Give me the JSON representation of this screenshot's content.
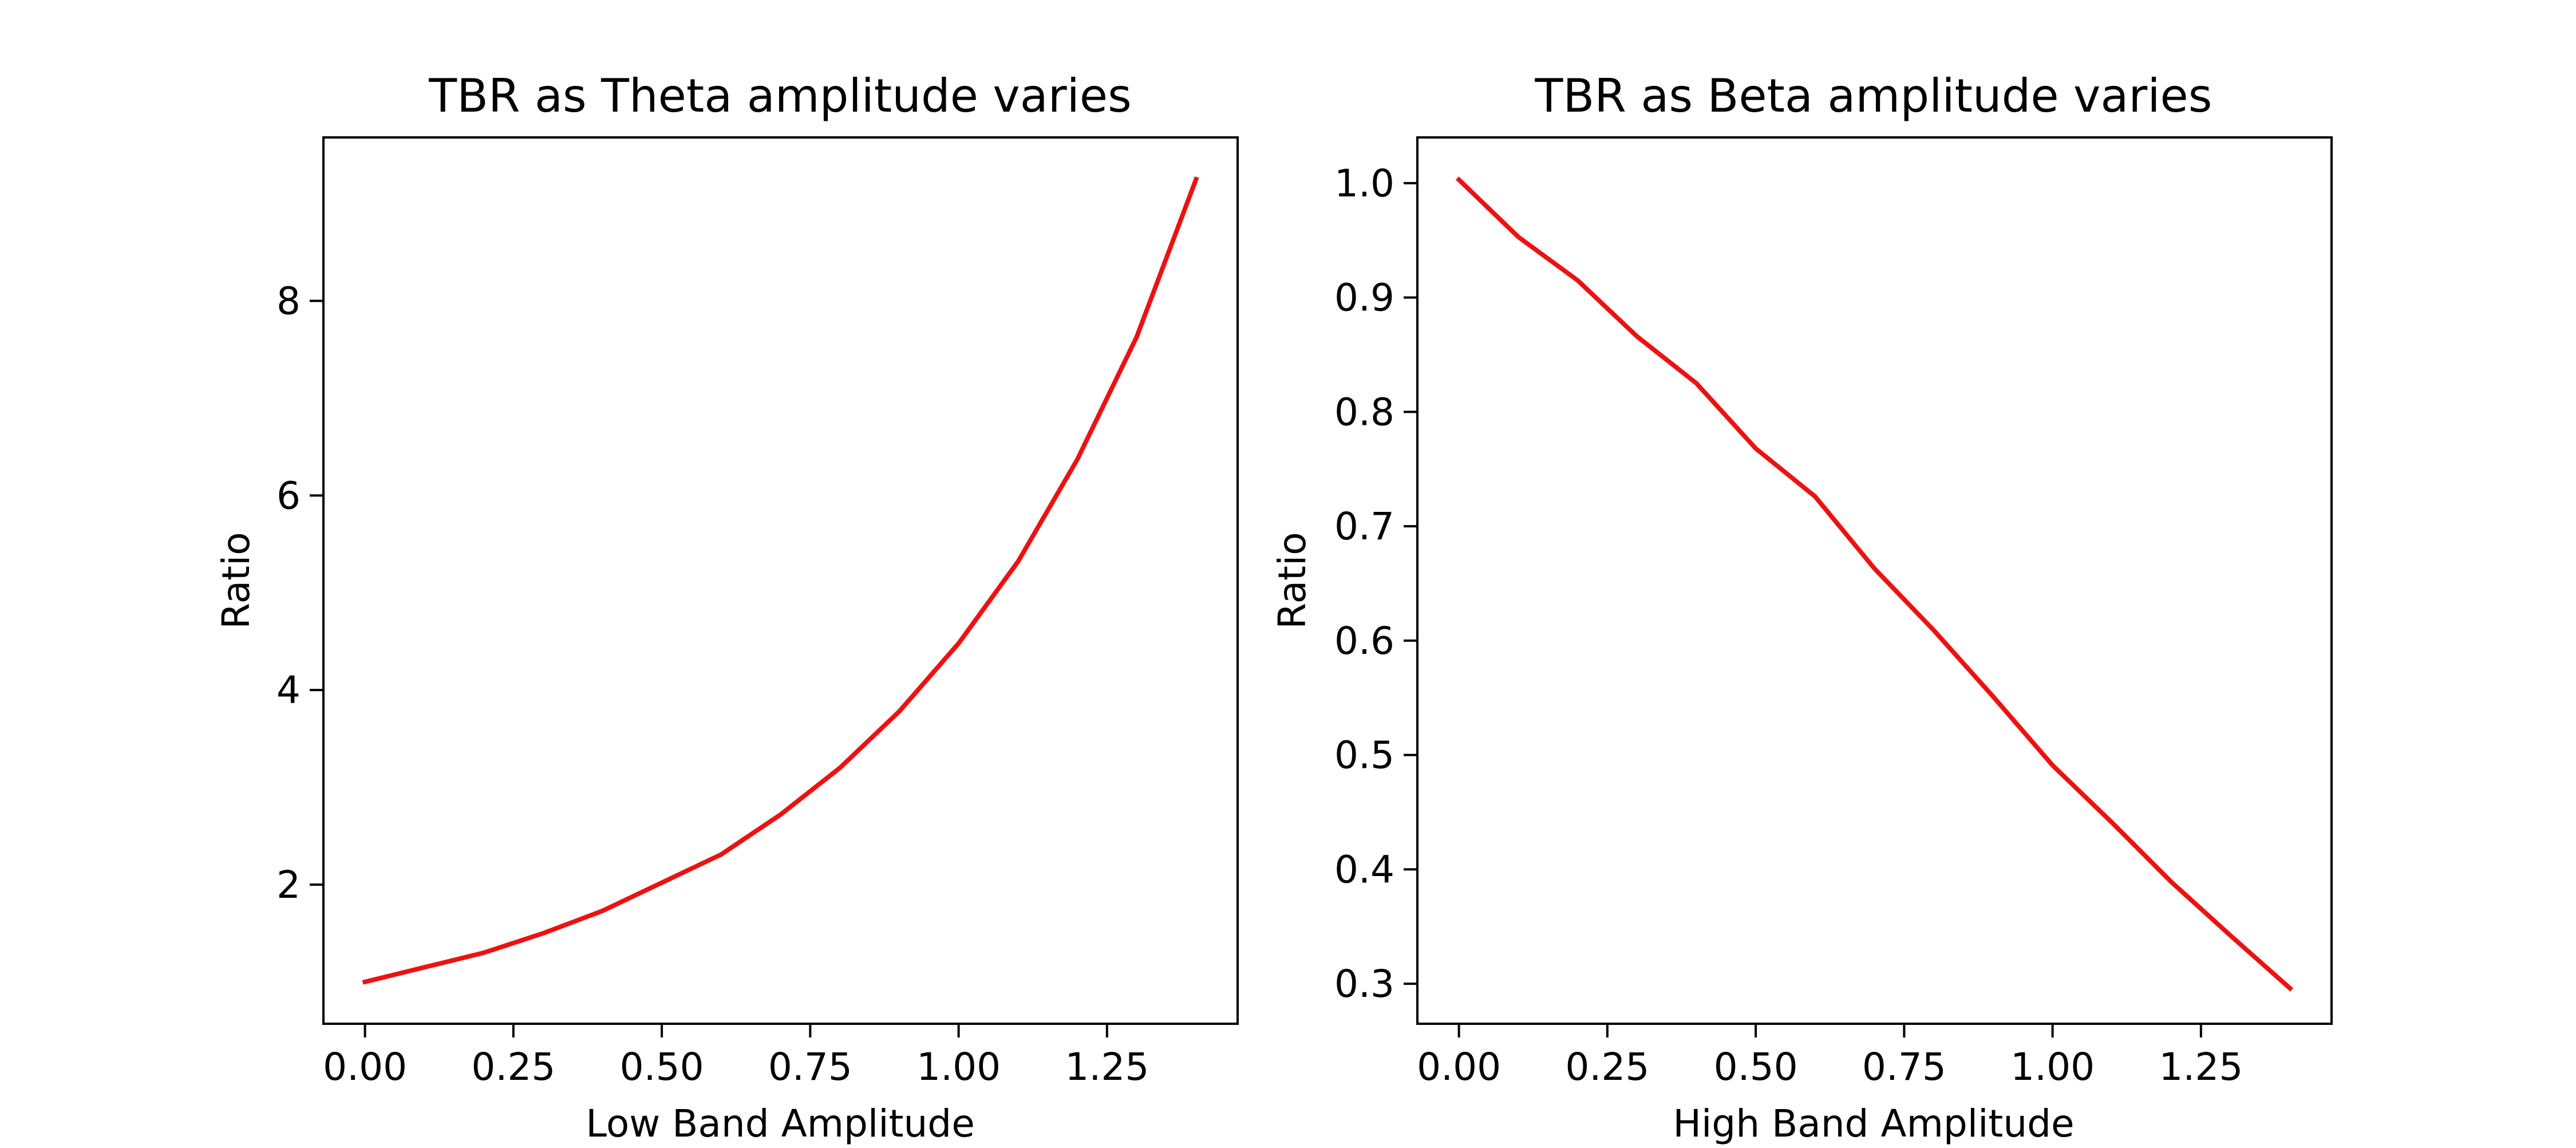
{
  "chart_data": [
    {
      "type": "line",
      "title": "TBR as Theta amplitude varies",
      "xlabel": "Low Band Amplitude",
      "ylabel": "Ratio",
      "xlim": [
        -0.07,
        1.47
      ],
      "ylim": [
        0.57,
        9.68
      ],
      "xticks": [
        0.0,
        0.25,
        0.5,
        0.75,
        1.0,
        1.25
      ],
      "xtick_labels": [
        "0.00",
        "0.25",
        "0.50",
        "0.75",
        "1.00",
        "1.25"
      ],
      "yticks": [
        2,
        4,
        6,
        8
      ],
      "ytick_labels": [
        "2",
        "4",
        "6",
        "8"
      ],
      "grid": false,
      "series": [
        {
          "color": "#ee1111",
          "x": [
            0.0,
            0.1,
            0.2,
            0.3,
            0.4,
            0.5,
            0.6,
            0.7,
            0.8,
            0.9,
            1.0,
            1.1,
            1.2,
            1.3,
            1.4
          ],
          "y": [
            1.0,
            1.15,
            1.3,
            1.5,
            1.73,
            2.02,
            2.31,
            2.72,
            3.2,
            3.78,
            4.48,
            5.32,
            6.37,
            7.63,
            9.25
          ]
        }
      ]
    },
    {
      "type": "line",
      "title": "TBR as Beta amplitude varies",
      "xlabel": "High Band Amplitude",
      "ylabel": "Ratio",
      "xlim": [
        -0.07,
        1.47
      ],
      "ylim": [
        0.265,
        1.04
      ],
      "xticks": [
        0.0,
        0.25,
        0.5,
        0.75,
        1.0,
        1.25
      ],
      "xtick_labels": [
        "0.00",
        "0.25",
        "0.50",
        "0.75",
        "1.00",
        "1.25"
      ],
      "yticks": [
        0.3,
        0.4,
        0.5,
        0.6,
        0.7,
        0.8,
        0.9,
        1.0
      ],
      "ytick_labels": [
        "0.3",
        "0.4",
        "0.5",
        "0.6",
        "0.7",
        "0.8",
        "0.9",
        "1.0"
      ],
      "grid": false,
      "series": [
        {
          "color": "#ee1111",
          "x": [
            0.0,
            0.1,
            0.2,
            0.3,
            0.4,
            0.5,
            0.6,
            0.7,
            0.8,
            0.9,
            1.0,
            1.1,
            1.2,
            1.3,
            1.4
          ],
          "y": [
            1.003,
            0.953,
            0.915,
            0.866,
            0.825,
            0.768,
            0.726,
            0.663,
            0.609,
            0.551,
            0.491,
            0.441,
            0.389,
            0.342,
            0.296
          ]
        }
      ]
    }
  ]
}
